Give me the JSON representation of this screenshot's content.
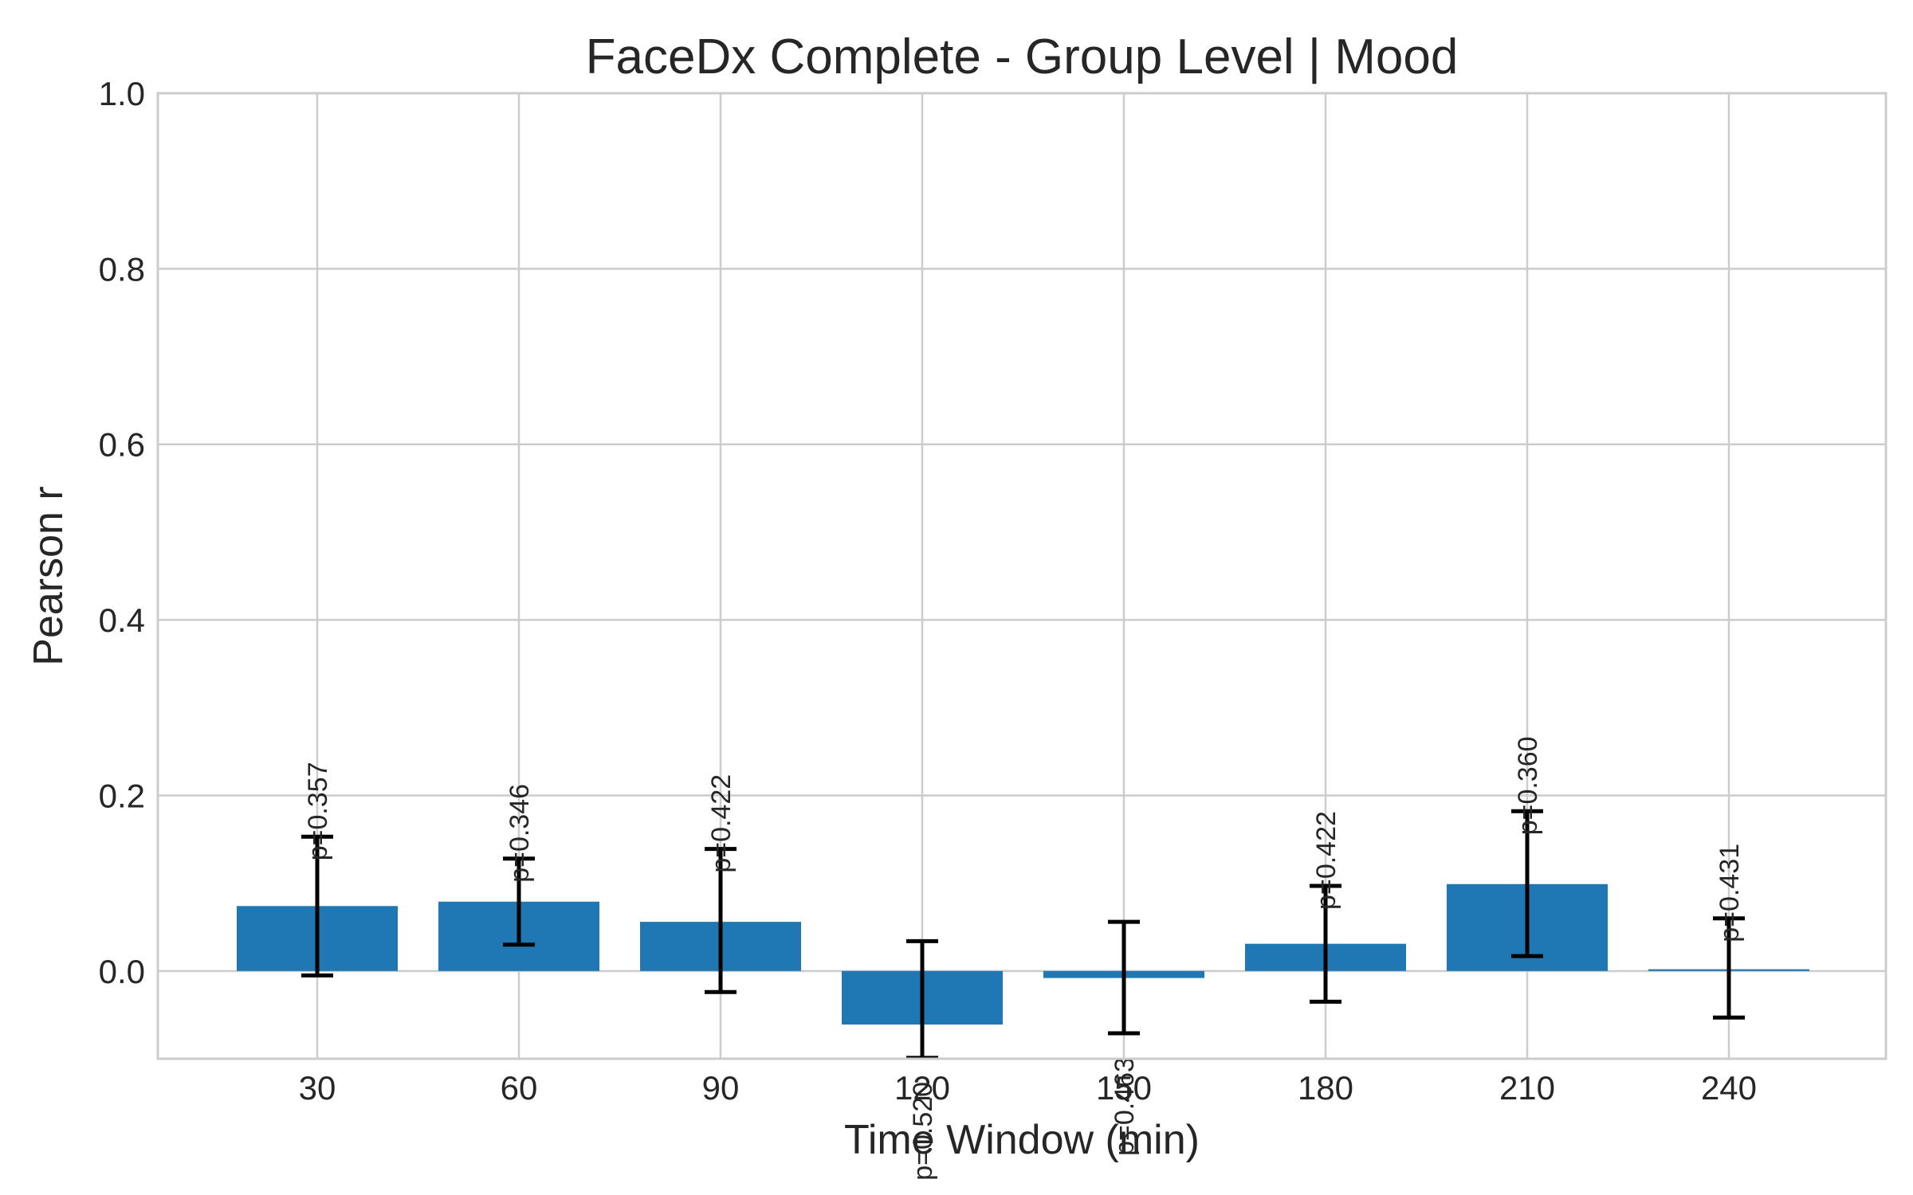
{
  "chart_data": {
    "type": "bar",
    "title": "FaceDx Complete - Group Level | Mood",
    "xlabel": "Time Window (min)",
    "ylabel": "Pearson r",
    "categories": [
      "30",
      "60",
      "90",
      "120",
      "150",
      "180",
      "210",
      "240"
    ],
    "values": [
      0.074,
      0.079,
      0.056,
      -0.061,
      -0.008,
      0.031,
      0.099,
      0.002
    ],
    "error_low": [
      -0.005,
      0.03,
      -0.024,
      -0.099,
      -0.071,
      -0.035,
      0.017,
      -0.053
    ],
    "error_high": [
      0.153,
      0.128,
      0.139,
      0.034,
      0.056,
      0.097,
      0.182,
      0.06
    ],
    "p_labels": [
      "p=0.357",
      "p=0.346",
      "p=0.422",
      "p=0.520",
      "p=0.463",
      "p=0.422",
      "p=0.360",
      "p=0.431"
    ],
    "ylim": [
      -0.1,
      1.0
    ],
    "yticks": [
      "0.0",
      "0.2",
      "0.4",
      "0.6",
      "0.8",
      "1.0"
    ],
    "grid": true,
    "bar_color": "#1f77b4"
  }
}
